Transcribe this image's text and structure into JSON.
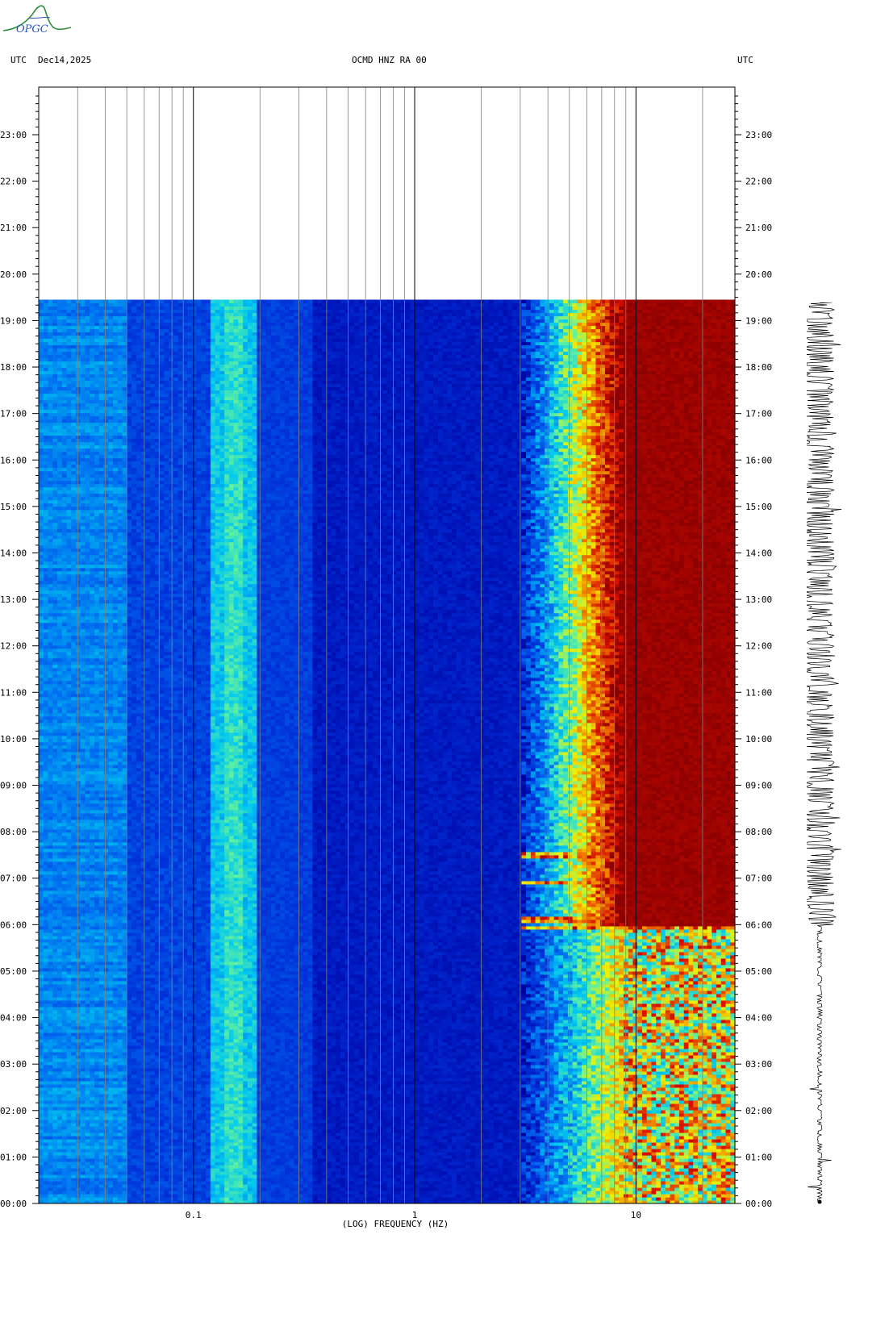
{
  "logo": {
    "text": "OPGC",
    "icon": "observatory-mountain-logo"
  },
  "header": {
    "left_utc": "UTC",
    "date": "Dec14,2025",
    "station": "OCMD HNZ RA 00",
    "right_utc": "UTC"
  },
  "chart_data": {
    "type": "heatmap",
    "title": "OCMD HNZ RA 00",
    "xlabel": "(LOG) FREQUENCY (HZ)",
    "ylabel": "",
    "x_scale": "log",
    "xlim": [
      0.02,
      28
    ],
    "x_tick_labels": [
      {
        "value": 0.1,
        "label": "0.1"
      },
      {
        "value": 1,
        "label": "1"
      },
      {
        "value": 10,
        "label": "10"
      }
    ],
    "time_labels": [
      "00:00",
      "01:00",
      "02:00",
      "03:00",
      "04:00",
      "05:00",
      "06:00",
      "07:00",
      "08:00",
      "09:00",
      "10:00",
      "11:00",
      "12:00",
      "13:00",
      "14:00",
      "15:00",
      "16:00",
      "17:00",
      "18:00",
      "19:00",
      "20:00",
      "21:00",
      "22:00",
      "23:00"
    ],
    "data_end_hour": 19.45,
    "colormap": [
      "#0000a0",
      "#0030d8",
      "#0070f0",
      "#00c8f0",
      "#60f0a0",
      "#f0f000",
      "#f08000",
      "#d81000",
      "#8b0000"
    ],
    "description_bands": [
      {
        "freq_range": [
          0.12,
          0.19
        ],
        "level": 0.35
      },
      {
        "freq_range": [
          5,
          9
        ],
        "level": 0.7
      },
      {
        "freq_range": [
          9,
          28
        ],
        "level": 1.0
      }
    ],
    "event_hours": [
      5.95,
      6.1,
      6.9,
      7.5
    ]
  },
  "seismogram": {
    "trace_color": "#000000"
  }
}
